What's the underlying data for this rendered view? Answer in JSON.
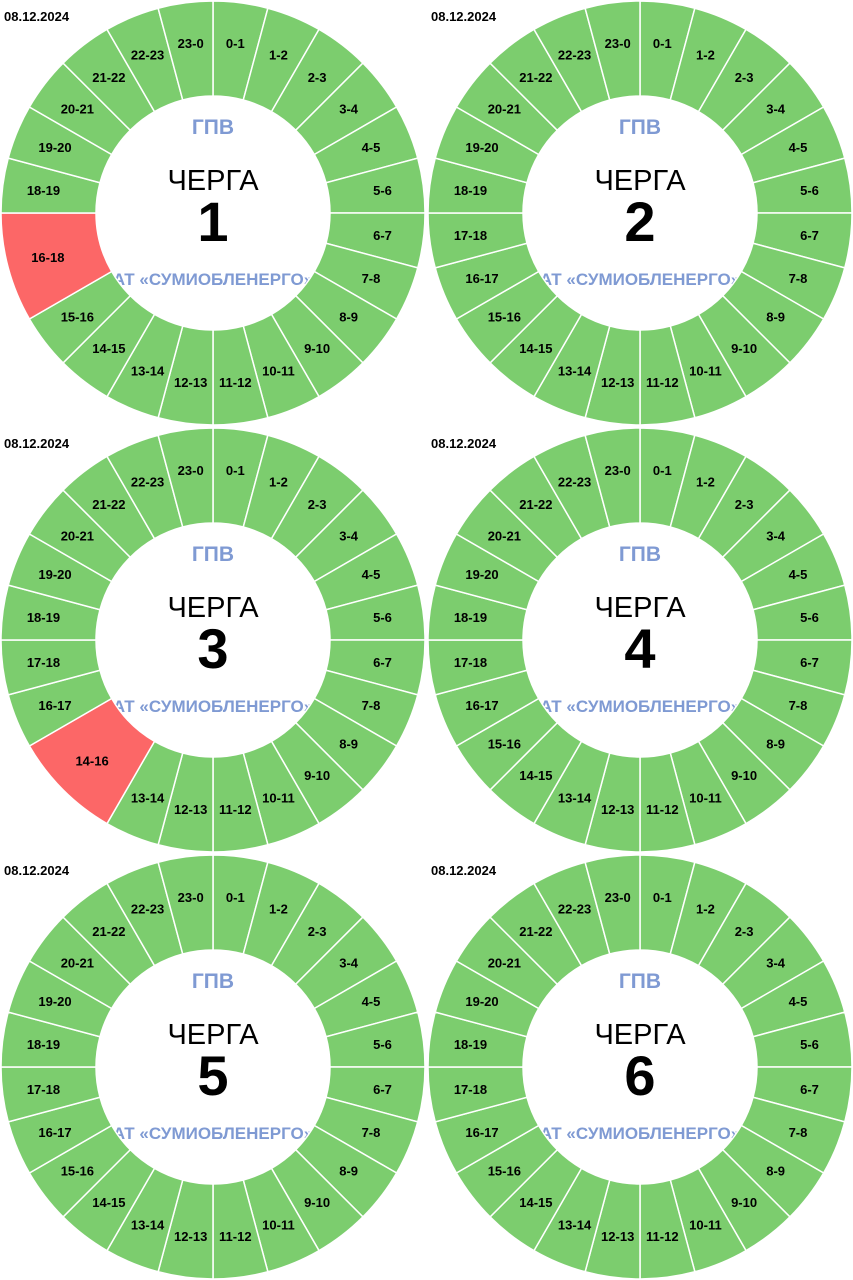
{
  "colors": {
    "on": "#7ccd6e",
    "off": "#fc6767",
    "divider": "#ffffff",
    "brand": "#7f9ad3",
    "text": "#000000"
  },
  "chart_data": [
    {
      "type": "pie",
      "variant": "donut",
      "date": "08.12.2024",
      "top": "ГПВ",
      "title": "ЧЕРГА",
      "number": "1",
      "footer": "АТ «СУМИОБЛЕНЕРГО»",
      "segments": [
        [
          "0-1",
          0,
          1,
          "on"
        ],
        [
          "1-2",
          1,
          2,
          "on"
        ],
        [
          "2-3",
          2,
          3,
          "on"
        ],
        [
          "3-4",
          3,
          4,
          "on"
        ],
        [
          "4-5",
          4,
          5,
          "on"
        ],
        [
          "5-6",
          5,
          6,
          "on"
        ],
        [
          "6-7",
          6,
          7,
          "on"
        ],
        [
          "7-8",
          7,
          8,
          "on"
        ],
        [
          "8-9",
          8,
          9,
          "on"
        ],
        [
          "9-10",
          9,
          10,
          "on"
        ],
        [
          "10-11",
          10,
          11,
          "on"
        ],
        [
          "11-12",
          11,
          12,
          "on"
        ],
        [
          "12-13",
          12,
          13,
          "on"
        ],
        [
          "13-14",
          13,
          14,
          "on"
        ],
        [
          "14-15",
          14,
          15,
          "on"
        ],
        [
          "15-16",
          15,
          16,
          "on"
        ],
        [
          "16-18",
          16,
          18,
          "off"
        ],
        [
          "18-19",
          18,
          19,
          "on"
        ],
        [
          "19-20",
          19,
          20,
          "on"
        ],
        [
          "20-21",
          20,
          21,
          "on"
        ],
        [
          "21-22",
          21,
          22,
          "on"
        ],
        [
          "22-23",
          22,
          23,
          "on"
        ],
        [
          "23-0",
          23,
          24,
          "on"
        ]
      ]
    },
    {
      "type": "pie",
      "variant": "donut",
      "date": "08.12.2024",
      "top": "ГПВ",
      "title": "ЧЕРГА",
      "number": "2",
      "footer": "АТ «СУМИОБЛЕНЕРГО»",
      "segments": [
        [
          "0-1",
          0,
          1,
          "on"
        ],
        [
          "1-2",
          1,
          2,
          "on"
        ],
        [
          "2-3",
          2,
          3,
          "on"
        ],
        [
          "3-4",
          3,
          4,
          "on"
        ],
        [
          "4-5",
          4,
          5,
          "on"
        ],
        [
          "5-6",
          5,
          6,
          "on"
        ],
        [
          "6-7",
          6,
          7,
          "on"
        ],
        [
          "7-8",
          7,
          8,
          "on"
        ],
        [
          "8-9",
          8,
          9,
          "on"
        ],
        [
          "9-10",
          9,
          10,
          "on"
        ],
        [
          "10-11",
          10,
          11,
          "on"
        ],
        [
          "11-12",
          11,
          12,
          "on"
        ],
        [
          "12-13",
          12,
          13,
          "on"
        ],
        [
          "13-14",
          13,
          14,
          "on"
        ],
        [
          "14-15",
          14,
          15,
          "on"
        ],
        [
          "15-16",
          15,
          16,
          "on"
        ],
        [
          "16-17",
          16,
          17,
          "on"
        ],
        [
          "17-18",
          17,
          18,
          "on"
        ],
        [
          "18-19",
          18,
          19,
          "on"
        ],
        [
          "19-20",
          19,
          20,
          "on"
        ],
        [
          "20-21",
          20,
          21,
          "on"
        ],
        [
          "21-22",
          21,
          22,
          "on"
        ],
        [
          "22-23",
          22,
          23,
          "on"
        ],
        [
          "23-0",
          23,
          24,
          "on"
        ]
      ]
    },
    {
      "type": "pie",
      "variant": "donut",
      "date": "08.12.2024",
      "top": "ГПВ",
      "title": "ЧЕРГА",
      "number": "3",
      "footer": "АТ «СУМИОБЛЕНЕРГО»",
      "segments": [
        [
          "0-1",
          0,
          1,
          "on"
        ],
        [
          "1-2",
          1,
          2,
          "on"
        ],
        [
          "2-3",
          2,
          3,
          "on"
        ],
        [
          "3-4",
          3,
          4,
          "on"
        ],
        [
          "4-5",
          4,
          5,
          "on"
        ],
        [
          "5-6",
          5,
          6,
          "on"
        ],
        [
          "6-7",
          6,
          7,
          "on"
        ],
        [
          "7-8",
          7,
          8,
          "on"
        ],
        [
          "8-9",
          8,
          9,
          "on"
        ],
        [
          "9-10",
          9,
          10,
          "on"
        ],
        [
          "10-11",
          10,
          11,
          "on"
        ],
        [
          "11-12",
          11,
          12,
          "on"
        ],
        [
          "12-13",
          12,
          13,
          "on"
        ],
        [
          "13-14",
          13,
          14,
          "on"
        ],
        [
          "14-16",
          14,
          16,
          "off"
        ],
        [
          "16-17",
          16,
          17,
          "on"
        ],
        [
          "17-18",
          17,
          18,
          "on"
        ],
        [
          "18-19",
          18,
          19,
          "on"
        ],
        [
          "19-20",
          19,
          20,
          "on"
        ],
        [
          "20-21",
          20,
          21,
          "on"
        ],
        [
          "21-22",
          21,
          22,
          "on"
        ],
        [
          "22-23",
          22,
          23,
          "on"
        ],
        [
          "23-0",
          23,
          24,
          "on"
        ]
      ]
    },
    {
      "type": "pie",
      "variant": "donut",
      "date": "08.12.2024",
      "top": "ГПВ",
      "title": "ЧЕРГА",
      "number": "4",
      "footer": "АТ «СУМИОБЛЕНЕРГО»",
      "segments": [
        [
          "0-1",
          0,
          1,
          "on"
        ],
        [
          "1-2",
          1,
          2,
          "on"
        ],
        [
          "2-3",
          2,
          3,
          "on"
        ],
        [
          "3-4",
          3,
          4,
          "on"
        ],
        [
          "4-5",
          4,
          5,
          "on"
        ],
        [
          "5-6",
          5,
          6,
          "on"
        ],
        [
          "6-7",
          6,
          7,
          "on"
        ],
        [
          "7-8",
          7,
          8,
          "on"
        ],
        [
          "8-9",
          8,
          9,
          "on"
        ],
        [
          "9-10",
          9,
          10,
          "on"
        ],
        [
          "10-11",
          10,
          11,
          "on"
        ],
        [
          "11-12",
          11,
          12,
          "on"
        ],
        [
          "12-13",
          12,
          13,
          "on"
        ],
        [
          "13-14",
          13,
          14,
          "on"
        ],
        [
          "14-15",
          14,
          15,
          "on"
        ],
        [
          "15-16",
          15,
          16,
          "on"
        ],
        [
          "16-17",
          16,
          17,
          "on"
        ],
        [
          "17-18",
          17,
          18,
          "on"
        ],
        [
          "18-19",
          18,
          19,
          "on"
        ],
        [
          "19-20",
          19,
          20,
          "on"
        ],
        [
          "20-21",
          20,
          21,
          "on"
        ],
        [
          "21-22",
          21,
          22,
          "on"
        ],
        [
          "22-23",
          22,
          23,
          "on"
        ],
        [
          "23-0",
          23,
          24,
          "on"
        ]
      ]
    },
    {
      "type": "pie",
      "variant": "donut",
      "date": "08.12.2024",
      "top": "ГПВ",
      "title": "ЧЕРГА",
      "number": "5",
      "footer": "АТ «СУМИОБЛЕНЕРГО»",
      "segments": [
        [
          "0-1",
          0,
          1,
          "on"
        ],
        [
          "1-2",
          1,
          2,
          "on"
        ],
        [
          "2-3",
          2,
          3,
          "on"
        ],
        [
          "3-4",
          3,
          4,
          "on"
        ],
        [
          "4-5",
          4,
          5,
          "on"
        ],
        [
          "5-6",
          5,
          6,
          "on"
        ],
        [
          "6-7",
          6,
          7,
          "on"
        ],
        [
          "7-8",
          7,
          8,
          "on"
        ],
        [
          "8-9",
          8,
          9,
          "on"
        ],
        [
          "9-10",
          9,
          10,
          "on"
        ],
        [
          "10-11",
          10,
          11,
          "on"
        ],
        [
          "11-12",
          11,
          12,
          "on"
        ],
        [
          "12-13",
          12,
          13,
          "on"
        ],
        [
          "13-14",
          13,
          14,
          "on"
        ],
        [
          "14-15",
          14,
          15,
          "on"
        ],
        [
          "15-16",
          15,
          16,
          "on"
        ],
        [
          "16-17",
          16,
          17,
          "on"
        ],
        [
          "17-18",
          17,
          18,
          "on"
        ],
        [
          "18-19",
          18,
          19,
          "on"
        ],
        [
          "19-20",
          19,
          20,
          "on"
        ],
        [
          "20-21",
          20,
          21,
          "on"
        ],
        [
          "21-22",
          21,
          22,
          "on"
        ],
        [
          "22-23",
          22,
          23,
          "on"
        ],
        [
          "23-0",
          23,
          24,
          "on"
        ]
      ]
    },
    {
      "type": "pie",
      "variant": "donut",
      "date": "08.12.2024",
      "top": "ГПВ",
      "title": "ЧЕРГА",
      "number": "6",
      "footer": "АТ «СУМИОБЛЕНЕРГО»",
      "segments": [
        [
          "0-1",
          0,
          1,
          "on"
        ],
        [
          "1-2",
          1,
          2,
          "on"
        ],
        [
          "2-3",
          2,
          3,
          "on"
        ],
        [
          "3-4",
          3,
          4,
          "on"
        ],
        [
          "4-5",
          4,
          5,
          "on"
        ],
        [
          "5-6",
          5,
          6,
          "on"
        ],
        [
          "6-7",
          6,
          7,
          "on"
        ],
        [
          "7-8",
          7,
          8,
          "on"
        ],
        [
          "8-9",
          8,
          9,
          "on"
        ],
        [
          "9-10",
          9,
          10,
          "on"
        ],
        [
          "10-11",
          10,
          11,
          "on"
        ],
        [
          "11-12",
          11,
          12,
          "on"
        ],
        [
          "12-13",
          12,
          13,
          "on"
        ],
        [
          "13-14",
          13,
          14,
          "on"
        ],
        [
          "14-15",
          14,
          15,
          "on"
        ],
        [
          "15-16",
          15,
          16,
          "on"
        ],
        [
          "16-17",
          16,
          17,
          "on"
        ],
        [
          "17-18",
          17,
          18,
          "on"
        ],
        [
          "18-19",
          18,
          19,
          "on"
        ],
        [
          "19-20",
          19,
          20,
          "on"
        ],
        [
          "20-21",
          20,
          21,
          "on"
        ],
        [
          "21-22",
          21,
          22,
          "on"
        ],
        [
          "22-23",
          22,
          23,
          "on"
        ],
        [
          "23-0",
          23,
          24,
          "on"
        ]
      ]
    }
  ]
}
